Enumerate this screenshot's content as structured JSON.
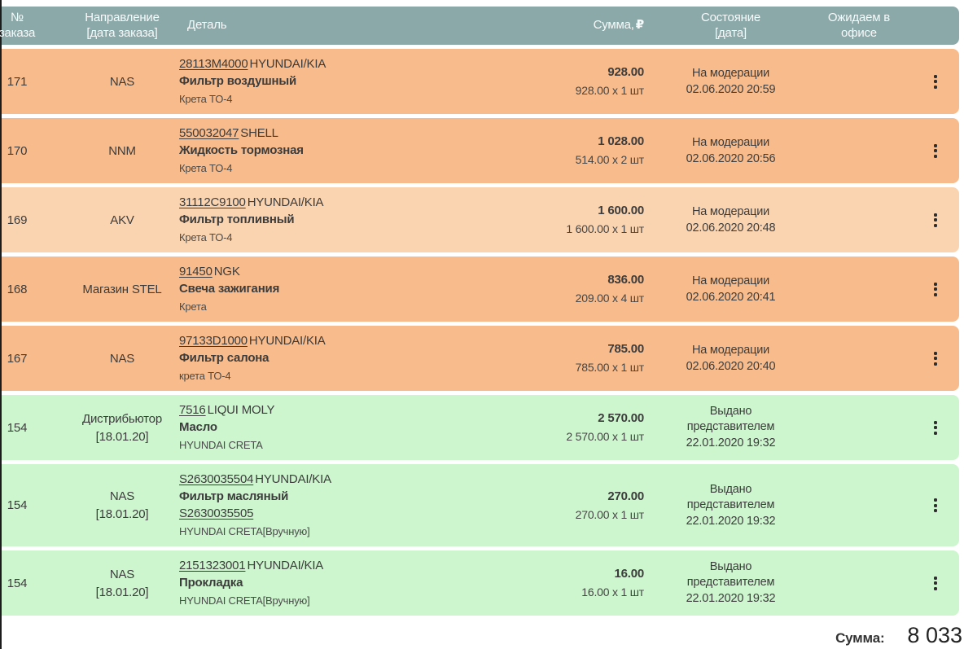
{
  "colors": {
    "header_bg": "#8CA9AA",
    "header_text": "#F7FAFA",
    "row_orange": "#F7BB8C",
    "row_orange_light": "#FAD4B0",
    "row_green": "#CDF5CE",
    "text": "#3C3C3C"
  },
  "header": {
    "columns": {
      "order": {
        "l1": "№",
        "l2": "заказа"
      },
      "direction": {
        "l1": "Направление",
        "l2": "[дата заказа]"
      },
      "detail": {
        "l1": "Деталь",
        "l2": ""
      },
      "sum": {
        "label": "Сумма,",
        "currency": "₽"
      },
      "status": {
        "l1": "Состояние",
        "l2": "[дата]"
      },
      "office": {
        "l1": "Ожидаем в",
        "l2": "офисе"
      }
    }
  },
  "rows": [
    {
      "order_no": "171",
      "direction": "NAS",
      "order_date": "",
      "part_link": "28113M4000",
      "brand": "HYUNDAI/KIA",
      "name": "Фильтр воздушный",
      "part_link2": "",
      "model": "Крета ТО-4",
      "total": "928.00",
      "breakdown": "928.00 x 1 шт",
      "status": "На модерации",
      "status_date": "02.06.2020 20:59",
      "variant": "orange"
    },
    {
      "order_no": "170",
      "direction": "NNM",
      "order_date": "",
      "part_link": "550032047",
      "brand": "SHELL",
      "name": "Жидкость тормозная",
      "part_link2": "",
      "model": "Крета ТО-4",
      "total": "1 028.00",
      "breakdown": "514.00 x 2 шт",
      "status": "На модерации",
      "status_date": "02.06.2020 20:56",
      "variant": "orange"
    },
    {
      "order_no": "169",
      "direction": "AKV",
      "order_date": "",
      "part_link": "31112C9100",
      "brand": "HYUNDAI/KIA",
      "name": "Фильтр топливный",
      "part_link2": "",
      "model": "Крета ТО-4",
      "total": "1 600.00",
      "breakdown": "1 600.00 x 1 шт",
      "status": "На модерации",
      "status_date": "02.06.2020 20:48",
      "variant": "orange-light"
    },
    {
      "order_no": "168",
      "direction": "Магазин STEL",
      "order_date": "",
      "part_link": "91450",
      "brand": "NGK",
      "name": "Свеча зажигания",
      "part_link2": "",
      "model": "Крета",
      "total": "836.00",
      "breakdown": "209.00 x 4 шт",
      "status": "На модерации",
      "status_date": "02.06.2020 20:41",
      "variant": "orange"
    },
    {
      "order_no": "167",
      "direction": "NAS",
      "order_date": "",
      "part_link": "97133D1000",
      "brand": "HYUNDAI/KIA",
      "name": "Фильтр салона",
      "part_link2": "",
      "model": "крета ТО-4",
      "total": "785.00",
      "breakdown": "785.00 x 1 шт",
      "status": "На модерации",
      "status_date": "02.06.2020 20:40",
      "variant": "orange"
    },
    {
      "order_no": "154",
      "direction": "Дистрибьютор",
      "order_date": "[18.01.20]",
      "part_link": "7516",
      "brand": "LIQUI MOLY",
      "name": "Масло",
      "part_link2": "",
      "model": "HYUNDAI CRETA",
      "total": "2 570.00",
      "breakdown": "2 570.00 x 1 шт",
      "status": "Выдано представителем",
      "status_date": "22.01.2020 19:32",
      "variant": "green"
    },
    {
      "order_no": "154",
      "direction": "NAS",
      "order_date": "[18.01.20]",
      "part_link": "S2630035504",
      "brand": "HYUNDAI/KIA",
      "name": "Фильтр масляный",
      "part_link2": "S2630035505",
      "model": "HYUNDAI CRETA[Вручную]",
      "total": "270.00",
      "breakdown": "270.00 x 1 шт",
      "status": "Выдано представителем",
      "status_date": "22.01.2020 19:32",
      "variant": "green"
    },
    {
      "order_no": "154",
      "direction": "NAS",
      "order_date": "[18.01.20]",
      "part_link": "2151323001",
      "brand": "HYUNDAI/KIA",
      "name": "Прокладка",
      "part_link2": "",
      "model": "HYUNDAI CRETA[Вручную]",
      "total": "16.00",
      "breakdown": "16.00 x 1 шт",
      "status": "Выдано представителем",
      "status_date": "22.01.2020 19:32",
      "variant": "green"
    }
  ],
  "footer": {
    "label": "Сумма:",
    "total": "8 033"
  }
}
